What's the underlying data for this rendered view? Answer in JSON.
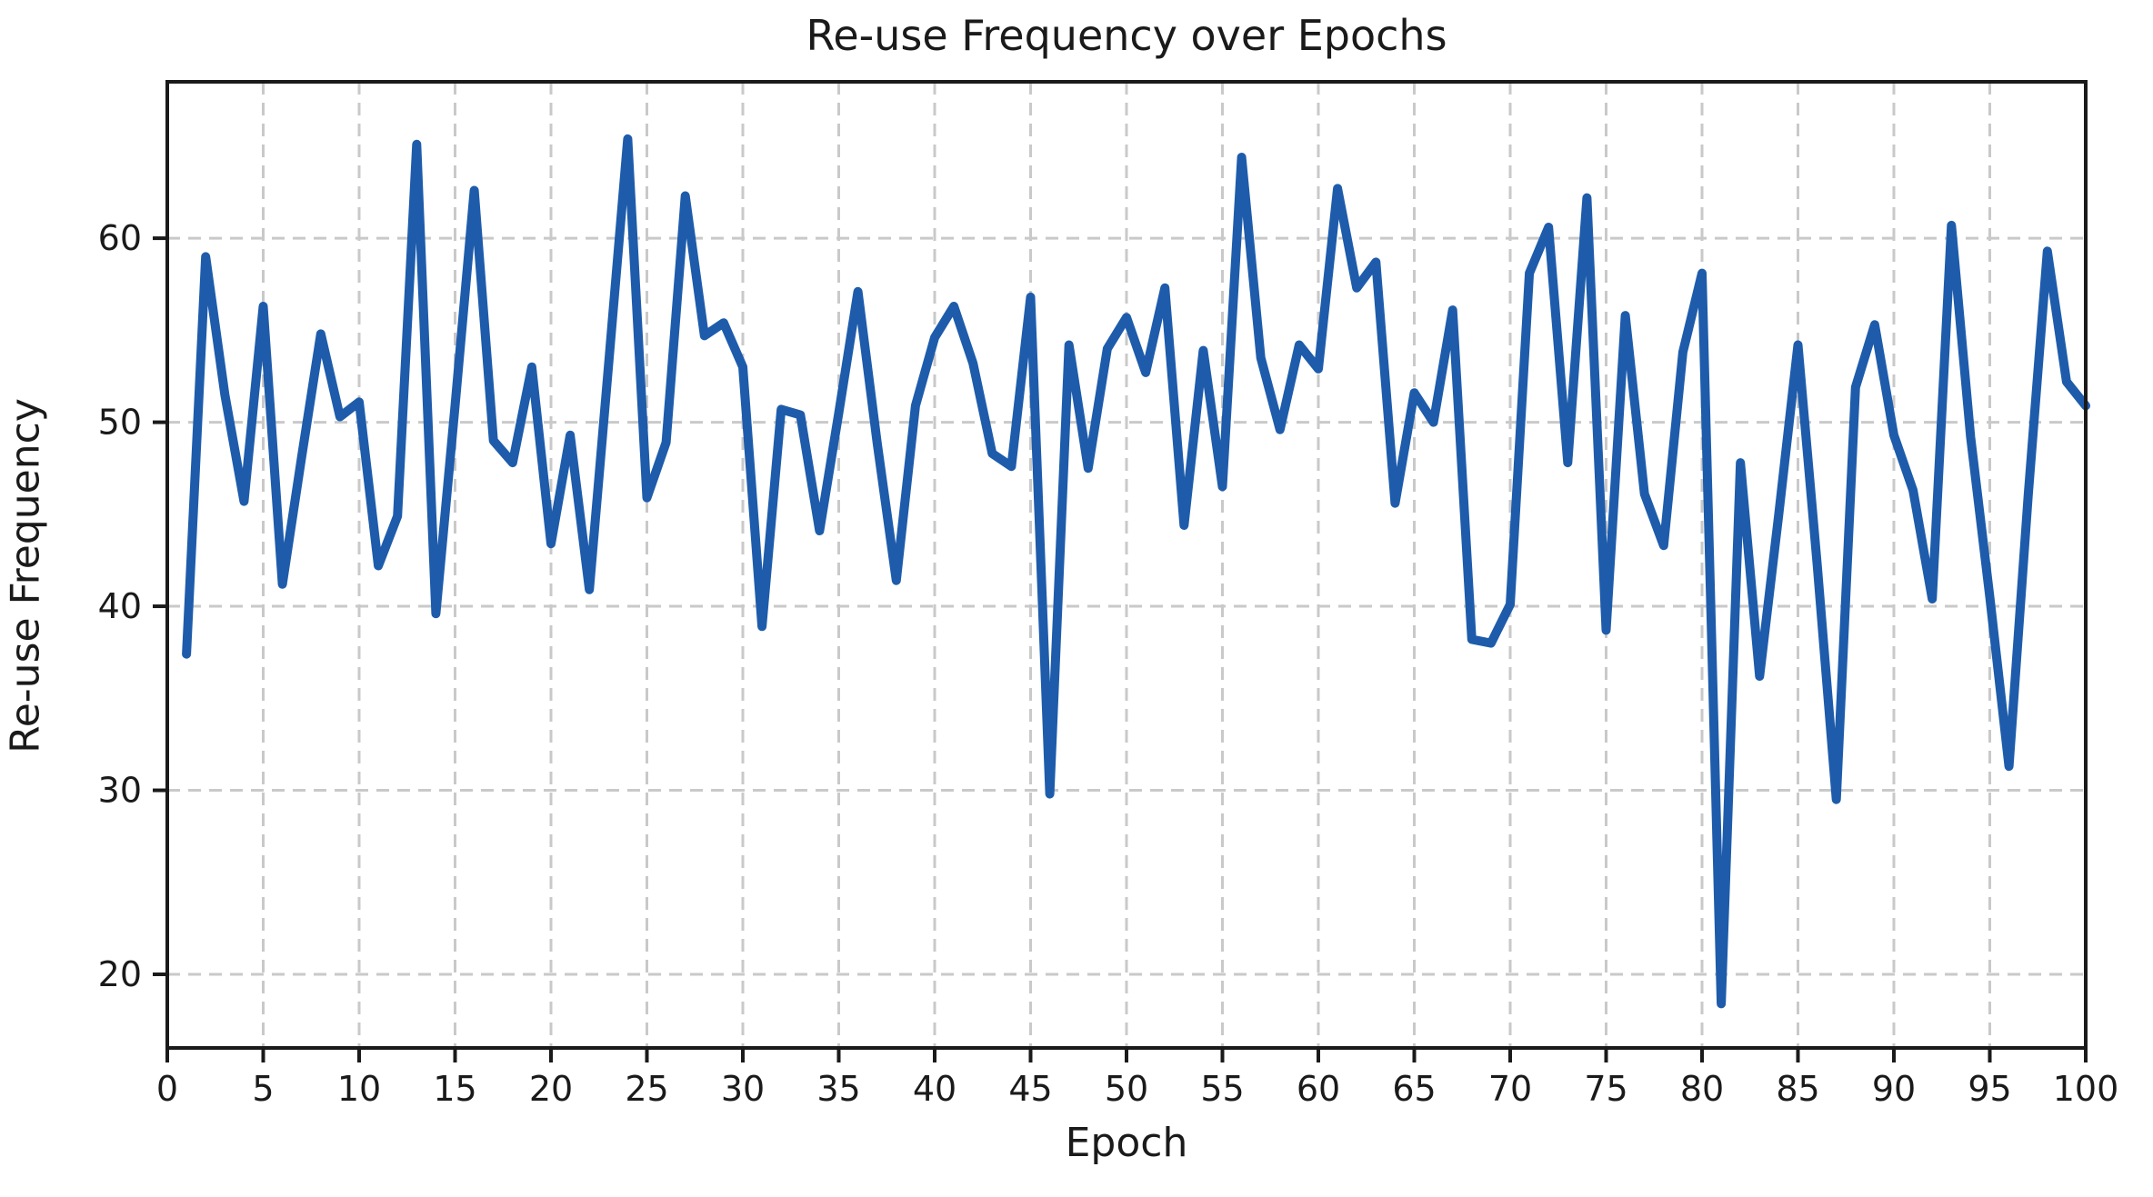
{
  "page": {
    "background": "#ffffff",
    "text_color": "#1a1a1a"
  },
  "chart_data": {
    "type": "line",
    "title": "Re-use Frequency over Epochs",
    "xlabel": "Epoch",
    "ylabel": "Re-use Frequency",
    "legend_position": "none",
    "grid": true,
    "grid_style": "dashed",
    "grid_color": "#c9c9c9",
    "line_color": "#1e5cab",
    "spine_color": "#1a1a1a",
    "xlim": [
      0,
      100
    ],
    "ylim": [
      16,
      68.5
    ],
    "xticks": [
      0,
      5,
      10,
      15,
      20,
      25,
      30,
      35,
      40,
      45,
      50,
      55,
      60,
      65,
      70,
      75,
      80,
      85,
      90,
      95,
      100
    ],
    "yticks": [
      20,
      30,
      40,
      50,
      60
    ],
    "x": [
      1,
      2,
      3,
      4,
      5,
      6,
      7,
      8,
      9,
      10,
      11,
      12,
      13,
      14,
      15,
      16,
      17,
      18,
      19,
      20,
      21,
      22,
      23,
      24,
      25,
      26,
      27,
      28,
      29,
      30,
      31,
      32,
      33,
      34,
      35,
      36,
      37,
      38,
      39,
      40,
      41,
      42,
      43,
      44,
      45,
      46,
      47,
      48,
      49,
      50,
      51,
      52,
      53,
      54,
      55,
      56,
      57,
      58,
      59,
      60,
      61,
      62,
      63,
      64,
      65,
      66,
      67,
      68,
      69,
      70,
      71,
      72,
      73,
      74,
      75,
      76,
      77,
      78,
      79,
      80,
      81,
      82,
      83,
      84,
      85,
      86,
      87,
      88,
      89,
      90,
      91,
      92,
      93,
      94,
      95,
      96,
      97,
      98,
      99,
      100
    ],
    "values": [
      37.4,
      59.0,
      51.5,
      45.7,
      56.3,
      41.2,
      48.1,
      54.8,
      50.3,
      51.1,
      42.2,
      44.9,
      65.1,
      39.6,
      50.9,
      62.6,
      49.0,
      47.8,
      53.0,
      43.4,
      49.3,
      40.9,
      53.1,
      65.4,
      45.9,
      48.9,
      62.3,
      54.7,
      55.4,
      53.0,
      38.9,
      50.7,
      50.4,
      44.1,
      50.5,
      57.1,
      48.9,
      41.4,
      50.9,
      54.6,
      56.3,
      53.2,
      48.3,
      47.6,
      56.8,
      29.8,
      54.2,
      47.5,
      54.0,
      55.7,
      52.7,
      57.3,
      44.4,
      53.9,
      46.5,
      64.4,
      53.5,
      49.6,
      54.2,
      52.9,
      62.7,
      57.3,
      58.7,
      45.6,
      51.6,
      50.0,
      56.1,
      38.2,
      38.0,
      40.1,
      58.1,
      60.6,
      47.8,
      62.2,
      38.7,
      55.8,
      46.1,
      43.3,
      53.8,
      58.1,
      18.4,
      47.8,
      36.2,
      45.0,
      54.2,
      42.3,
      29.5,
      51.9,
      55.3,
      49.3,
      46.3,
      40.4,
      60.7,
      49.2,
      40.5,
      31.3,
      46.0,
      59.3,
      52.2,
      50.9
    ]
  }
}
